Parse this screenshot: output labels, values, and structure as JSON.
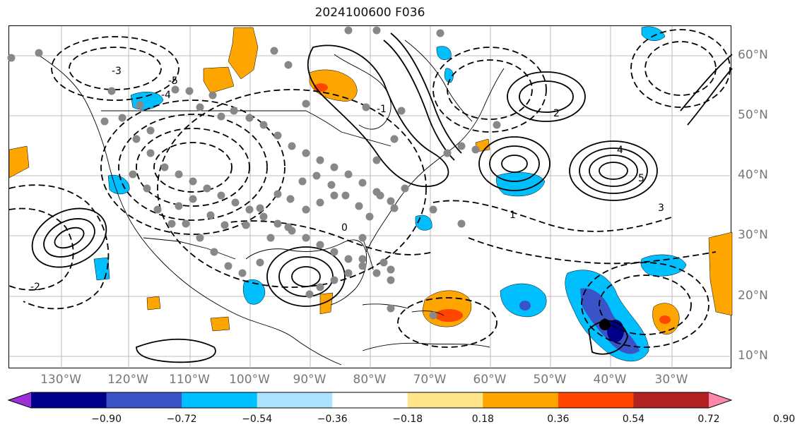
{
  "title": "2024100600 F036",
  "lon_labels": [
    "130°W",
    "120°W",
    "110°W",
    "100°W",
    "90°W",
    "80°W",
    "70°W",
    "60°W",
    "50°W",
    "40°W",
    "30°W"
  ],
  "lat_labels": [
    "60°N",
    "50°N",
    "40°N",
    "30°N",
    "20°N",
    "10°N"
  ],
  "colorbar": {
    "ticks": [
      "−0.90",
      "−0.72",
      "−0.54",
      "−0.36",
      "−0.18",
      "0.18",
      "0.36",
      "0.54",
      "0.72",
      "0.90"
    ],
    "colors": [
      "#9b30d8",
      "#00008b",
      "#3a54c8",
      "#00bfff",
      "#aee3ff",
      "#ffffff",
      "#ffe58a",
      "#ffa500",
      "#ff4500",
      "#b22222",
      "#ff88aa"
    ]
  },
  "contour_labels": [
    "5",
    "4",
    "3",
    "2",
    "1",
    "0",
    "-1",
    "-2",
    "-3",
    "-4",
    "-5"
  ],
  "colors": {
    "positive_fill": "#ffa500",
    "negative_fill": "#00bfff",
    "station_marker": "#888888",
    "contour": "#000000",
    "grid": "#aaaaaa"
  }
}
